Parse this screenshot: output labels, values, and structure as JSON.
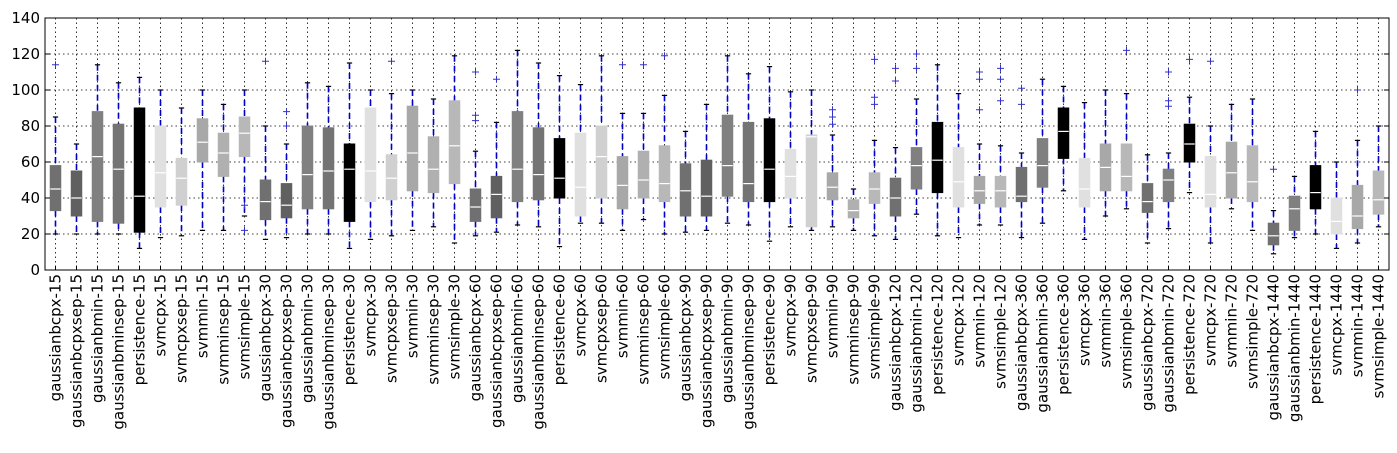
{
  "chart_data": {
    "type": "boxplot",
    "title": "",
    "xlabel": "",
    "ylabel": "",
    "ylim": [
      0,
      140
    ],
    "yticks": [
      0,
      20,
      40,
      60,
      80,
      100,
      120,
      140
    ],
    "grid": true,
    "whisker_color": "#0000cc",
    "outlier_color": "#3333cc",
    "categories": [
      {
        "label": "gaussianbcpx-15",
        "fill": "#707070",
        "q1": 33,
        "median": 45,
        "q3": 58,
        "low": 20,
        "high": 85,
        "outliers": [
          114
        ]
      },
      {
        "label": "gaussianbcpxsep-15",
        "fill": "#606060",
        "q1": 30,
        "median": 40,
        "q3": 55,
        "low": 20,
        "high": 70,
        "outliers": []
      },
      {
        "label": "gaussianbmin-15",
        "fill": "#808080",
        "q1": 27,
        "median": 63,
        "q3": 88,
        "low": 20,
        "high": 114,
        "outliers": []
      },
      {
        "label": "gaussianbminsep-15",
        "fill": "#747474",
        "q1": 26,
        "median": 56,
        "q3": 81,
        "low": 20,
        "high": 104,
        "outliers": []
      },
      {
        "label": "persistence-15",
        "fill": "#000000",
        "q1": 21,
        "median": 41,
        "q3": 90,
        "low": 12,
        "high": 107,
        "outliers": []
      },
      {
        "label": "svmcpx-15",
        "fill": "#e0e0e0",
        "q1": 35,
        "median": 54,
        "q3": 80,
        "low": 18,
        "high": 100,
        "outliers": []
      },
      {
        "label": "svmcpxsep-15",
        "fill": "#d0d0d0",
        "q1": 36,
        "median": 51,
        "q3": 62,
        "low": 19,
        "high": 90,
        "outliers": []
      },
      {
        "label": "svmmin-15",
        "fill": "#a8a8a8",
        "q1": 60,
        "median": 71,
        "q3": 84,
        "low": 22,
        "high": 100,
        "outliers": []
      },
      {
        "label": "svmminsep-15",
        "fill": "#b0b0b0",
        "q1": 52,
        "median": 65,
        "q3": 76,
        "low": 22,
        "high": 92,
        "outliers": []
      },
      {
        "label": "svmsimple-15",
        "fill": "#b8b8b8",
        "q1": 63,
        "median": 76,
        "q3": 85,
        "low": 30,
        "high": 100,
        "outliers": [
          22,
          36
        ]
      },
      {
        "label": "gaussianbcpx-30",
        "fill": "#707070",
        "q1": 28,
        "median": 38,
        "q3": 50,
        "low": 17,
        "high": 80,
        "outliers": [
          116
        ]
      },
      {
        "label": "gaussianbcpxsep-30",
        "fill": "#606060",
        "q1": 29,
        "median": 36,
        "q3": 48,
        "low": 18,
        "high": 70,
        "outliers": [
          80,
          88
        ]
      },
      {
        "label": "gaussianbmin-30",
        "fill": "#808080",
        "q1": 34,
        "median": 53,
        "q3": 80,
        "low": 20,
        "high": 104,
        "outliers": []
      },
      {
        "label": "gaussianbminsep-30",
        "fill": "#747474",
        "q1": 34,
        "median": 55,
        "q3": 79,
        "low": 20,
        "high": 102,
        "outliers": []
      },
      {
        "label": "persistence-30",
        "fill": "#000000",
        "q1": 27,
        "median": 56,
        "q3": 70,
        "low": 12,
        "high": 115,
        "outliers": []
      },
      {
        "label": "svmcpx-30",
        "fill": "#e0e0e0",
        "q1": 38,
        "median": 55,
        "q3": 90,
        "low": 17,
        "high": 100,
        "outliers": []
      },
      {
        "label": "svmcpxsep-30",
        "fill": "#d0d0d0",
        "q1": 39,
        "median": 51,
        "q3": 64,
        "low": 19,
        "high": 98,
        "outliers": [
          116
        ]
      },
      {
        "label": "svmmin-30",
        "fill": "#a8a8a8",
        "q1": 44,
        "median": 65,
        "q3": 91,
        "low": 22,
        "high": 100,
        "outliers": []
      },
      {
        "label": "svmminsep-30",
        "fill": "#b0b0b0",
        "q1": 43,
        "median": 56,
        "q3": 74,
        "low": 24,
        "high": 95,
        "outliers": []
      },
      {
        "label": "svmsimple-30",
        "fill": "#b8b8b8",
        "q1": 48,
        "median": 69,
        "q3": 94,
        "low": 15,
        "high": 119,
        "outliers": []
      },
      {
        "label": "gaussianbcpx-60",
        "fill": "#707070",
        "q1": 27,
        "median": 35,
        "q3": 45,
        "low": 19,
        "high": 66,
        "outliers": [
          83,
          86,
          110
        ]
      },
      {
        "label": "gaussianbcpxsep-60",
        "fill": "#606060",
        "q1": 29,
        "median": 42,
        "q3": 52,
        "low": 21,
        "high": 82,
        "outliers": [
          106
        ]
      },
      {
        "label": "gaussianbmin-60",
        "fill": "#808080",
        "q1": 38,
        "median": 56,
        "q3": 88,
        "low": 25,
        "high": 122,
        "outliers": []
      },
      {
        "label": "gaussianbminsep-60",
        "fill": "#747474",
        "q1": 39,
        "median": 53,
        "q3": 79,
        "low": 24,
        "high": 115,
        "outliers": []
      },
      {
        "label": "persistence-60",
        "fill": "#000000",
        "q1": 40,
        "median": 51,
        "q3": 73,
        "low": 13,
        "high": 108,
        "outliers": []
      },
      {
        "label": "svmcpx-60",
        "fill": "#e0e0e0",
        "q1": 30,
        "median": 46,
        "q3": 76,
        "low": 26,
        "high": 103,
        "outliers": []
      },
      {
        "label": "svmcpxsep-60",
        "fill": "#d0d0d0",
        "q1": 40,
        "median": 63,
        "q3": 80,
        "low": 26,
        "high": 119,
        "outliers": []
      },
      {
        "label": "svmmin-60",
        "fill": "#a8a8a8",
        "q1": 34,
        "median": 47,
        "q3": 63,
        "low": 22,
        "high": 87,
        "outliers": [
          114
        ]
      },
      {
        "label": "svmminsep-60",
        "fill": "#b0b0b0",
        "q1": 40,
        "median": 50,
        "q3": 66,
        "low": 28,
        "high": 87,
        "outliers": [
          114
        ]
      },
      {
        "label": "svmsimple-60",
        "fill": "#b8b8b8",
        "q1": 38,
        "median": 48,
        "q3": 69,
        "low": 20,
        "high": 97,
        "outliers": [
          119
        ]
      },
      {
        "label": "gaussianbcpx-90",
        "fill": "#707070",
        "q1": 30,
        "median": 44,
        "q3": 59,
        "low": 21,
        "high": 77,
        "outliers": []
      },
      {
        "label": "gaussianbcpxsep-90",
        "fill": "#606060",
        "q1": 30,
        "median": 41,
        "q3": 61,
        "low": 22,
        "high": 92,
        "outliers": []
      },
      {
        "label": "gaussianbmin-90",
        "fill": "#808080",
        "q1": 41,
        "median": 58,
        "q3": 86,
        "low": 26,
        "high": 119,
        "outliers": []
      },
      {
        "label": "gaussianbminsep-90",
        "fill": "#747474",
        "q1": 38,
        "median": 48,
        "q3": 82,
        "low": 25,
        "high": 109,
        "outliers": []
      },
      {
        "label": "persistence-90",
        "fill": "#000000",
        "q1": 38,
        "median": 56,
        "q3": 84,
        "low": 16,
        "high": 113,
        "outliers": []
      },
      {
        "label": "svmcpx-90",
        "fill": "#e0e0e0",
        "q1": 40,
        "median": 52,
        "q3": 67,
        "low": 24,
        "high": 99,
        "outliers": []
      },
      {
        "label": "svmcpxsep-90",
        "fill": "#d0d0d0",
        "q1": 24,
        "median": 74,
        "q3": 75,
        "low": 22,
        "high": 100,
        "outliers": []
      },
      {
        "label": "svmmin-90",
        "fill": "#a8a8a8",
        "q1": 39,
        "median": 46,
        "q3": 54,
        "low": 24,
        "high": 75,
        "outliers": [
          81,
          85,
          89
        ]
      },
      {
        "label": "svmminsep-90",
        "fill": "#b0b0b0",
        "q1": 29,
        "median": 33,
        "q3": 39,
        "low": 22,
        "high": 45,
        "outliers": []
      },
      {
        "label": "svmsimple-90",
        "fill": "#b8b8b8",
        "q1": 37,
        "median": 45,
        "q3": 54,
        "low": 19,
        "high": 72,
        "outliers": [
          92,
          96,
          117
        ]
      },
      {
        "label": "gaussianbcpx-120",
        "fill": "#707070",
        "q1": 30,
        "median": 40,
        "q3": 51,
        "low": 17,
        "high": 68,
        "outliers": [
          105,
          112
        ]
      },
      {
        "label": "gaussianbmin-120",
        "fill": "#808080",
        "q1": 45,
        "median": 58,
        "q3": 68,
        "low": 31,
        "high": 95,
        "outliers": [
          112,
          120
        ]
      },
      {
        "label": "persistence-120",
        "fill": "#000000",
        "q1": 43,
        "median": 61,
        "q3": 82,
        "low": 19,
        "high": 114,
        "outliers": []
      },
      {
        "label": "svmcpx-120",
        "fill": "#e0e0e0",
        "q1": 35,
        "median": 49,
        "q3": 68,
        "low": 18,
        "high": 98,
        "outliers": []
      },
      {
        "label": "svmmin-120",
        "fill": "#a8a8a8",
        "q1": 37,
        "median": 44,
        "q3": 52,
        "low": 25,
        "high": 70,
        "outliers": [
          89,
          106,
          110
        ]
      },
      {
        "label": "svmsimple-120",
        "fill": "#b8b8b8",
        "q1": 35,
        "median": 44,
        "q3": 52,
        "low": 25,
        "high": 69,
        "outliers": [
          94,
          106,
          112
        ]
      },
      {
        "label": "gaussianbcpx-360",
        "fill": "#707070",
        "q1": 38,
        "median": 41,
        "q3": 57,
        "low": 18,
        "high": 65,
        "outliers": [
          92,
          101
        ]
      },
      {
        "label": "gaussianbmin-360",
        "fill": "#808080",
        "q1": 46,
        "median": 58,
        "q3": 73,
        "low": 26,
        "high": 106,
        "outliers": []
      },
      {
        "label": "persistence-360",
        "fill": "#000000",
        "q1": 62,
        "median": 77,
        "q3": 90,
        "low": 44,
        "high": 102,
        "outliers": []
      },
      {
        "label": "svmcpx-360",
        "fill": "#e0e0e0",
        "q1": 35,
        "median": 45,
        "q3": 62,
        "low": 17,
        "high": 93,
        "outliers": []
      },
      {
        "label": "svmmin-360",
        "fill": "#a8a8a8",
        "q1": 44,
        "median": 57,
        "q3": 70,
        "low": 30,
        "high": 100,
        "outliers": []
      },
      {
        "label": "svmsimple-360",
        "fill": "#b8b8b8",
        "q1": 44,
        "median": 52,
        "q3": 70,
        "low": 34,
        "high": 98,
        "outliers": [
          122
        ]
      },
      {
        "label": "gaussianbcpx-720",
        "fill": "#707070",
        "q1": 32,
        "median": 38,
        "q3": 48,
        "low": 15,
        "high": 64,
        "outliers": []
      },
      {
        "label": "gaussianbmin-720",
        "fill": "#808080",
        "q1": 38,
        "median": 50,
        "q3": 56,
        "low": 23,
        "high": 65,
        "outliers": [
          91,
          94,
          110
        ]
      },
      {
        "label": "persistence-720",
        "fill": "#000000",
        "q1": 60,
        "median": 70,
        "q3": 81,
        "low": 43,
        "high": 96,
        "outliers": [
          117
        ]
      },
      {
        "label": "svmcpx-720",
        "fill": "#e0e0e0",
        "q1": 35,
        "median": 42,
        "q3": 63,
        "low": 15,
        "high": 80,
        "outliers": [
          116
        ]
      },
      {
        "label": "svmmin-720",
        "fill": "#a8a8a8",
        "q1": 40,
        "median": 54,
        "q3": 71,
        "low": 34,
        "high": 92,
        "outliers": []
      },
      {
        "label": "svmsimple-720",
        "fill": "#b8b8b8",
        "q1": 38,
        "median": 49,
        "q3": 69,
        "low": 22,
        "high": 95,
        "outliers": []
      },
      {
        "label": "gaussianbcpx-1440",
        "fill": "#707070",
        "q1": 14,
        "median": 19,
        "q3": 26,
        "low": 9,
        "high": 33,
        "outliers": [
          56
        ]
      },
      {
        "label": "gaussianbmin-1440",
        "fill": "#808080",
        "q1": 22,
        "median": 34,
        "q3": 41,
        "low": 18,
        "high": 52,
        "outliers": []
      },
      {
        "label": "persistence-1440",
        "fill": "#000000",
        "q1": 34,
        "median": 43,
        "q3": 58,
        "low": 20,
        "high": 77,
        "outliers": []
      },
      {
        "label": "svmcpx-1440",
        "fill": "#e0e0e0",
        "q1": 20,
        "median": 27,
        "q3": 40,
        "low": 12,
        "high": 60,
        "outliers": []
      },
      {
        "label": "svmmin-1440",
        "fill": "#a8a8a8",
        "q1": 23,
        "median": 30,
        "q3": 47,
        "low": 15,
        "high": 72,
        "outliers": [
          100
        ]
      },
      {
        "label": "svmsimple-1440",
        "fill": "#b8b8b8",
        "q1": 31,
        "median": 39,
        "q3": 55,
        "low": 24,
        "high": 80,
        "outliers": []
      }
    ]
  }
}
